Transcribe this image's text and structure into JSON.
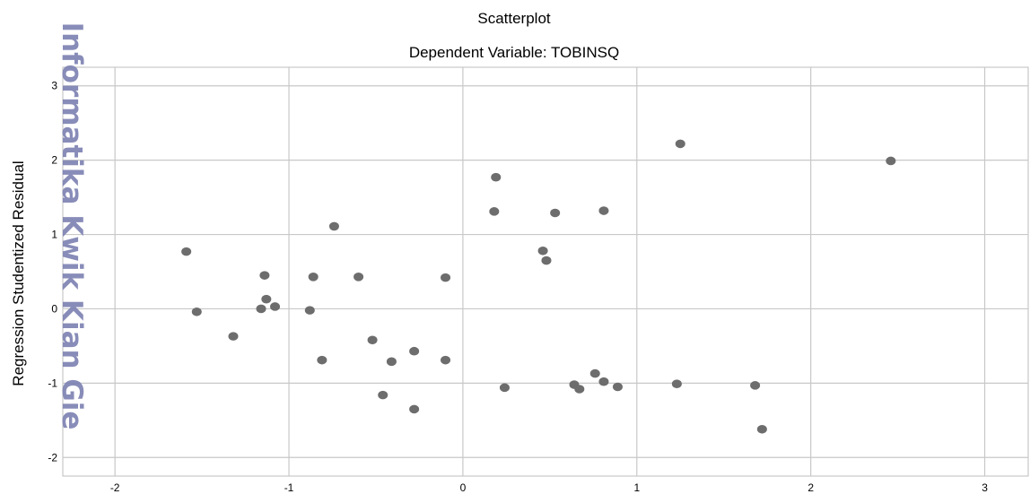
{
  "watermark": "Informatika Kwik Kian Gie",
  "chart_data": {
    "type": "scatter",
    "title": "Scatterplot",
    "subtitle": "Dependent Variable: TOBINSQ",
    "xlabel": "",
    "ylabel": "Regression Studentized Residual",
    "xlim": [
      -2.3,
      3.25
    ],
    "ylim": [
      -2.25,
      3.25
    ],
    "xticks": [
      -2,
      -1,
      0,
      1,
      2,
      3
    ],
    "yticks": [
      -2,
      -1,
      0,
      1,
      2,
      3
    ],
    "grid": true,
    "point_color": "#6d6d6d",
    "gridline_color": "#c8c8c8",
    "points": [
      {
        "x": -1.59,
        "y": 0.77
      },
      {
        "x": -1.53,
        "y": -0.04
      },
      {
        "x": -1.32,
        "y": -0.37
      },
      {
        "x": -1.16,
        "y": 0.0
      },
      {
        "x": -1.14,
        "y": 0.45
      },
      {
        "x": -1.13,
        "y": 0.13
      },
      {
        "x": -1.08,
        "y": 0.03
      },
      {
        "x": -0.88,
        "y": -0.02
      },
      {
        "x": -0.86,
        "y": 0.43
      },
      {
        "x": -0.81,
        "y": -0.69
      },
      {
        "x": -0.74,
        "y": 1.11
      },
      {
        "x": -0.6,
        "y": 0.43
      },
      {
        "x": -0.52,
        "y": -0.42
      },
      {
        "x": -0.46,
        "y": -1.16
      },
      {
        "x": -0.41,
        "y": -0.71
      },
      {
        "x": -0.28,
        "y": -0.57
      },
      {
        "x": -0.28,
        "y": -1.35
      },
      {
        "x": -0.1,
        "y": 0.42
      },
      {
        "x": -0.1,
        "y": -0.69
      },
      {
        "x": 0.18,
        "y": 1.31
      },
      {
        "x": 0.19,
        "y": 1.77
      },
      {
        "x": 0.24,
        "y": -1.06
      },
      {
        "x": 0.46,
        "y": 0.78
      },
      {
        "x": 0.48,
        "y": 0.65
      },
      {
        "x": 0.53,
        "y": 1.29
      },
      {
        "x": 0.64,
        "y": -1.02
      },
      {
        "x": 0.67,
        "y": -1.08
      },
      {
        "x": 0.76,
        "y": -0.87
      },
      {
        "x": 0.81,
        "y": 1.32
      },
      {
        "x": 0.81,
        "y": -0.98
      },
      {
        "x": 0.89,
        "y": -1.05
      },
      {
        "x": 1.23,
        "y": -1.01
      },
      {
        "x": 1.25,
        "y": 2.22
      },
      {
        "x": 1.68,
        "y": -1.03
      },
      {
        "x": 1.72,
        "y": -1.62
      },
      {
        "x": 2.46,
        "y": 1.99
      }
    ]
  }
}
